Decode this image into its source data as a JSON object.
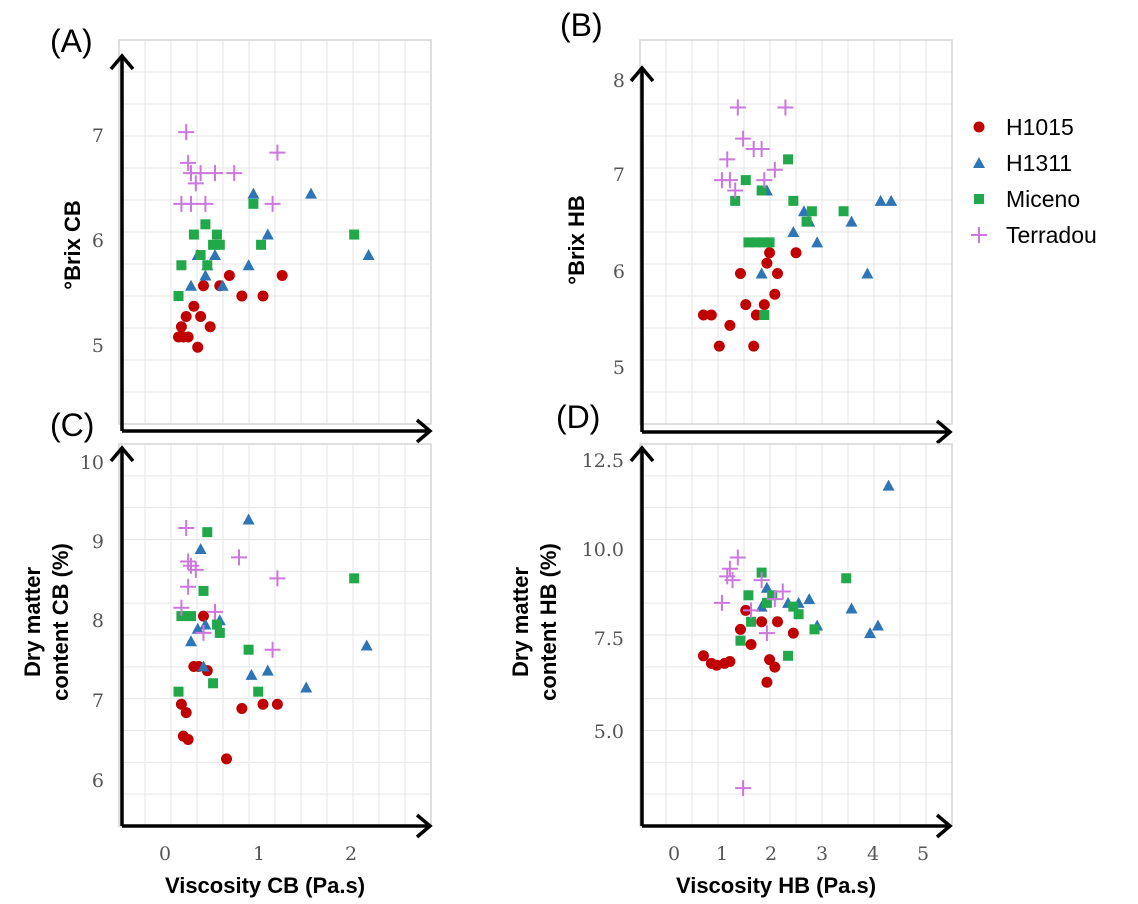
{
  "colors": {
    "H1015": "#c00000",
    "H1311": "#2e75b6",
    "Miceno": "#21a84a",
    "Terradou": "#cc77dd"
  },
  "legend": [
    {
      "name": "H1015",
      "marker": "circle"
    },
    {
      "name": "H1311",
      "marker": "triangle"
    },
    {
      "name": "Miceno",
      "marker": "square"
    },
    {
      "name": "Terradou",
      "marker": "plus"
    }
  ],
  "x_titles": {
    "left": "Viscosity CB (Pa.s)",
    "right": "Viscosity HB (Pa.s)"
  },
  "chart_data": [
    {
      "panel": "(A)",
      "type": "scatter",
      "xlabel": "",
      "ylabel": "°Brix CB",
      "xlim": [
        -0.5,
        2.75
      ],
      "ylim": [
        4.15,
        7.9
      ],
      "xticks": [],
      "yticks": [
        "5",
        "6",
        "7"
      ],
      "series": [
        {
          "name": "H1015",
          "points": [
            [
              0.12,
              5.0
            ],
            [
              0.15,
              5.1
            ],
            [
              0.17,
              5.0
            ],
            [
              0.2,
              5.2
            ],
            [
              0.22,
              5.0
            ],
            [
              0.28,
              5.3
            ],
            [
              0.32,
              4.9
            ],
            [
              0.35,
              5.2
            ],
            [
              0.38,
              5.5
            ],
            [
              0.45,
              5.1
            ],
            [
              0.55,
              5.5
            ],
            [
              0.65,
              5.6
            ],
            [
              0.78,
              5.4
            ],
            [
              1.0,
              5.4
            ],
            [
              1.2,
              5.6
            ]
          ]
        },
        {
          "name": "H1311",
          "points": [
            [
              0.25,
              5.5
            ],
            [
              0.32,
              5.8
            ],
            [
              0.4,
              5.6
            ],
            [
              0.42,
              5.7
            ],
            [
              0.5,
              5.8
            ],
            [
              0.58,
              5.5
            ],
            [
              0.85,
              5.7
            ],
            [
              0.9,
              6.4
            ],
            [
              1.05,
              6.0
            ],
            [
              1.5,
              6.4
            ],
            [
              2.1,
              5.8
            ]
          ]
        },
        {
          "name": "Miceno",
          "points": [
            [
              0.12,
              5.4
            ],
            [
              0.15,
              5.7
            ],
            [
              0.28,
              6.0
            ],
            [
              0.35,
              5.8
            ],
            [
              0.4,
              6.1
            ],
            [
              0.42,
              5.7
            ],
            [
              0.48,
              5.9
            ],
            [
              0.52,
              6.0
            ],
            [
              0.55,
              5.9
            ],
            [
              0.9,
              6.3
            ],
            [
              0.98,
              5.9
            ],
            [
              1.95,
              6.0
            ]
          ]
        },
        {
          "name": "Terradou",
          "points": [
            [
              0.2,
              7.0
            ],
            [
              0.22,
              6.7
            ],
            [
              0.25,
              6.6
            ],
            [
              0.3,
              6.5
            ],
            [
              0.35,
              6.6
            ],
            [
              0.15,
              6.3
            ],
            [
              0.25,
              6.3
            ],
            [
              0.4,
              6.3
            ],
            [
              0.5,
              6.6
            ],
            [
              0.7,
              6.6
            ],
            [
              1.1,
              6.3
            ],
            [
              1.15,
              6.8
            ]
          ]
        }
      ]
    },
    {
      "panel": "(B)",
      "type": "scatter",
      "xlabel": "",
      "ylabel": "°Brix HB",
      "xlim": [
        -0.6,
        5.3
      ],
      "ylim": [
        4.35,
        8.05
      ],
      "xticks": [],
      "yticks": [
        "5",
        "6",
        "7",
        "8"
      ],
      "series": [
        {
          "name": "H1015",
          "points": [
            [
              0.6,
              5.4
            ],
            [
              0.75,
              5.4
            ],
            [
              0.9,
              5.1
            ],
            [
              1.1,
              5.3
            ],
            [
              1.3,
              5.8
            ],
            [
              1.4,
              5.5
            ],
            [
              1.55,
              5.1
            ],
            [
              1.6,
              5.4
            ],
            [
              1.75,
              5.5
            ],
            [
              1.8,
              5.9
            ],
            [
              1.85,
              6.0
            ],
            [
              1.95,
              5.6
            ],
            [
              2.0,
              5.8
            ],
            [
              2.35,
              6.0
            ]
          ]
        },
        {
          "name": "H1311",
          "points": [
            [
              1.7,
              5.8
            ],
            [
              1.8,
              6.6
            ],
            [
              2.3,
              6.2
            ],
            [
              2.5,
              6.4
            ],
            [
              2.6,
              6.3
            ],
            [
              2.75,
              6.1
            ],
            [
              3.4,
              6.3
            ],
            [
              3.7,
              5.8
            ],
            [
              3.95,
              6.5
            ],
            [
              4.15,
              6.5
            ]
          ]
        },
        {
          "name": "Miceno",
          "points": [
            [
              1.2,
              6.5
            ],
            [
              1.4,
              6.7
            ],
            [
              1.45,
              6.1
            ],
            [
              1.6,
              6.1
            ],
            [
              1.7,
              6.6
            ],
            [
              1.75,
              6.1
            ],
            [
              1.85,
              6.1
            ],
            [
              1.75,
              5.4
            ],
            [
              2.2,
              6.9
            ],
            [
              2.3,
              6.5
            ],
            [
              2.55,
              6.3
            ],
            [
              2.65,
              6.4
            ],
            [
              3.25,
              6.4
            ]
          ]
        },
        {
          "name": "Terradou",
          "points": [
            [
              0.95,
              6.7
            ],
            [
              1.05,
              6.9
            ],
            [
              1.1,
              6.7
            ],
            [
              1.2,
              6.6
            ],
            [
              1.25,
              7.4
            ],
            [
              1.35,
              7.1
            ],
            [
              1.55,
              7.0
            ],
            [
              1.7,
              7.0
            ],
            [
              1.75,
              6.7
            ],
            [
              1.95,
              6.8
            ],
            [
              2.15,
              7.4
            ]
          ]
        }
      ]
    },
    {
      "panel": "(C)",
      "type": "scatter",
      "xlabel": "Viscosity CB (Pa.s)",
      "ylabel": "Dry matter content CB (%)",
      "xlim": [
        -0.5,
        2.75
      ],
      "ylim": [
        5.65,
        10.2
      ],
      "xticks": [
        "0",
        "1",
        "2"
      ],
      "yticks": [
        "6",
        "7",
        "8",
        "9",
        "10"
      ],
      "series": [
        {
          "name": "H1015",
          "points": [
            [
              0.15,
              7.1
            ],
            [
              0.17,
              6.72
            ],
            [
              0.2,
              7.0
            ],
            [
              0.22,
              6.68
            ],
            [
              0.28,
              7.55
            ],
            [
              0.33,
              7.55
            ],
            [
              0.38,
              8.15
            ],
            [
              0.42,
              7.5
            ],
            [
              0.62,
              6.45
            ],
            [
              0.78,
              7.05
            ],
            [
              1.0,
              7.1
            ],
            [
              1.15,
              7.1
            ]
          ]
        },
        {
          "name": "H1311",
          "points": [
            [
              0.25,
              7.85
            ],
            [
              0.32,
              8.0
            ],
            [
              0.35,
              8.95
            ],
            [
              0.38,
              7.55
            ],
            [
              0.4,
              8.05
            ],
            [
              0.55,
              8.1
            ],
            [
              0.85,
              9.3
            ],
            [
              0.88,
              7.45
            ],
            [
              1.05,
              7.5
            ],
            [
              1.45,
              7.3
            ],
            [
              2.08,
              7.8
            ]
          ]
        },
        {
          "name": "Miceno",
          "points": [
            [
              0.12,
              7.25
            ],
            [
              0.15,
              8.15
            ],
            [
              0.25,
              8.15
            ],
            [
              0.38,
              8.45
            ],
            [
              0.42,
              9.15
            ],
            [
              0.48,
              7.35
            ],
            [
              0.52,
              8.05
            ],
            [
              0.55,
              7.95
            ],
            [
              0.85,
              7.75
            ],
            [
              0.95,
              7.25
            ],
            [
              1.95,
              8.6
            ]
          ]
        },
        {
          "name": "Terradou",
          "points": [
            [
              0.2,
              9.2
            ],
            [
              0.22,
              8.8
            ],
            [
              0.25,
              8.75
            ],
            [
              0.3,
              8.7
            ],
            [
              0.22,
              8.5
            ],
            [
              0.15,
              8.25
            ],
            [
              0.38,
              7.95
            ],
            [
              0.5,
              8.2
            ],
            [
              0.75,
              8.85
            ],
            [
              1.1,
              7.75
            ],
            [
              1.15,
              8.6
            ]
          ]
        }
      ]
    },
    {
      "panel": "(D)",
      "type": "scatter",
      "xlabel": "Viscosity HB (Pa.s)",
      "ylabel": "Dry matter content HB (%)",
      "xlim": [
        -0.6,
        5.3
      ],
      "ylim": [
        2.8,
        12.9
      ],
      "xticks": [
        "0",
        "1",
        "2",
        "3",
        "4",
        "5"
      ],
      "yticks": [
        "5.0",
        "7.5",
        "10.0",
        "12.5"
      ],
      "series": [
        {
          "name": "H1015",
          "points": [
            [
              0.6,
              7.3
            ],
            [
              0.75,
              7.1
            ],
            [
              0.85,
              7.05
            ],
            [
              1.0,
              7.1
            ],
            [
              1.1,
              7.15
            ],
            [
              1.3,
              8.0
            ],
            [
              1.4,
              8.5
            ],
            [
              1.5,
              7.6
            ],
            [
              1.7,
              8.2
            ],
            [
              1.8,
              6.6
            ],
            [
              1.85,
              7.2
            ],
            [
              1.95,
              7.0
            ],
            [
              2.0,
              8.2
            ],
            [
              2.3,
              7.9
            ]
          ]
        },
        {
          "name": "H1311",
          "points": [
            [
              1.7,
              8.6
            ],
            [
              1.8,
              9.1
            ],
            [
              2.2,
              8.7
            ],
            [
              2.4,
              8.7
            ],
            [
              2.6,
              8.8
            ],
            [
              2.75,
              8.1
            ],
            [
              3.4,
              8.55
            ],
            [
              3.75,
              7.9
            ],
            [
              3.9,
              8.1
            ],
            [
              4.1,
              11.8
            ]
          ]
        },
        {
          "name": "Miceno",
          "points": [
            [
              1.3,
              7.7
            ],
            [
              1.45,
              8.9
            ],
            [
              1.5,
              8.2
            ],
            [
              1.7,
              9.5
            ],
            [
              1.8,
              8.7
            ],
            [
              1.9,
              8.9
            ],
            [
              2.2,
              7.3
            ],
            [
              2.3,
              8.6
            ],
            [
              2.4,
              8.4
            ],
            [
              2.7,
              8.0
            ],
            [
              3.3,
              9.35
            ]
          ]
        },
        {
          "name": "Terradou",
          "points": [
            [
              0.95,
              8.7
            ],
            [
              1.05,
              9.4
            ],
            [
              1.1,
              9.6
            ],
            [
              1.15,
              9.3
            ],
            [
              1.25,
              9.9
            ],
            [
              1.35,
              3.8
            ],
            [
              1.5,
              8.5
            ],
            [
              1.7,
              9.3
            ],
            [
              1.8,
              7.9
            ],
            [
              1.95,
              8.8
            ],
            [
              2.1,
              9.0
            ]
          ]
        }
      ]
    }
  ]
}
